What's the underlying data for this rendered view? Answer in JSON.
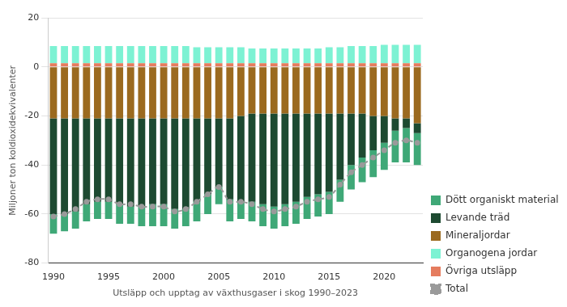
{
  "chart_data": {
    "type": "bar",
    "stacked": true,
    "grid": true,
    "legend": "lower right",
    "x_label": "Utsläpp och upptag av växthusgaser i skog 1990–2023",
    "y_label": "Miljoner ton koldioxidekvivalenter",
    "categories": [
      "1990",
      null,
      null,
      null,
      null,
      "1995",
      null,
      null,
      null,
      null,
      "2000",
      null,
      null,
      null,
      null,
      "2005",
      null,
      null,
      null,
      null,
      "2010",
      null,
      null,
      null,
      null,
      "2015",
      null,
      null,
      null,
      null,
      "2020",
      null,
      null,
      null
    ],
    "ylim": [
      -80,
      20
    ],
    "yticks": [
      -80,
      -60,
      -40,
      -20,
      0,
      20
    ],
    "series": [
      {
        "name": "Dött organiskt material",
        "color": "#3fa877",
        "type": "bar",
        "values": [
          -8,
          -7,
          -7,
          -7,
          -7,
          -7,
          -8,
          -7,
          -8,
          -9,
          -9,
          -8,
          -7,
          -8,
          -8,
          -7,
          -9,
          -7,
          -8,
          -9,
          -9,
          -9,
          -9,
          -9,
          -9,
          -9,
          -9,
          -10,
          -10,
          -11,
          -11,
          -13,
          -14,
          -13
        ]
      },
      {
        "name": "Levande träd",
        "color": "#1d4a31",
        "type": "bar",
        "values": [
          -39,
          -39,
          -38,
          -35,
          -34,
          -34,
          -35,
          -36,
          -36,
          -35,
          -35,
          -37,
          -37,
          -34,
          -31,
          -28,
          -33,
          -35,
          -36,
          -37,
          -38,
          -37,
          -36,
          -34,
          -33,
          -32,
          -27,
          -21,
          -18,
          -14,
          -11,
          -5,
          -4,
          -4
        ]
      },
      {
        "name": "Mineraljordar",
        "color": "#9b6a1f",
        "type": "bar",
        "values": [
          -21,
          -21,
          -21,
          -21,
          -21,
          -21,
          -21,
          -21,
          -21,
          -21,
          -21,
          -21,
          -21,
          -21,
          -21,
          -21,
          -21,
          -20,
          -19,
          -19,
          -19,
          -19,
          -19,
          -19,
          -19,
          -19,
          -19,
          -19,
          -19,
          -20,
          -20,
          -21,
          -21,
          -23
        ]
      },
      {
        "name": "Organogena jordar",
        "color": "#7df2d3",
        "type": "bar",
        "values": [
          7,
          7,
          7,
          7,
          7,
          7,
          7,
          7,
          7,
          7,
          7,
          7,
          7,
          6.5,
          6.5,
          6.5,
          6.5,
          6.5,
          6,
          6,
          6,
          6,
          6,
          6,
          6,
          6.5,
          6.5,
          7,
          7,
          7,
          7.5,
          7.5,
          7.5,
          7.5
        ]
      },
      {
        "name": "Övriga utsläpp",
        "color": "#e57c5e",
        "type": "bar",
        "values": [
          1.5,
          1.5,
          1.5,
          1.5,
          1.5,
          1.5,
          1.5,
          1.5,
          1.5,
          1.5,
          1.5,
          1.5,
          1.5,
          1.5,
          1.5,
          1.5,
          1.5,
          1.5,
          1.5,
          1.5,
          1.5,
          1.5,
          1.5,
          1.5,
          1.5,
          1.5,
          1.5,
          1.5,
          1.5,
          1.5,
          1.5,
          1.5,
          1.5,
          1.5
        ]
      },
      {
        "name": "Total",
        "color": "#9a9a9a",
        "type": "line",
        "line_style": "dashed",
        "marker": "circle",
        "values": [
          -61,
          -60,
          -58,
          -55,
          -54,
          -54,
          -56,
          -56,
          -57,
          -57,
          -57,
          -59,
          -58,
          -55,
          -52,
          -49,
          -55,
          -55,
          -56,
          -58,
          -59,
          -58,
          -57,
          -55,
          -54,
          -53,
          -48,
          -43,
          -40,
          -37,
          -34,
          -31,
          -30,
          -31
        ]
      }
    ]
  }
}
